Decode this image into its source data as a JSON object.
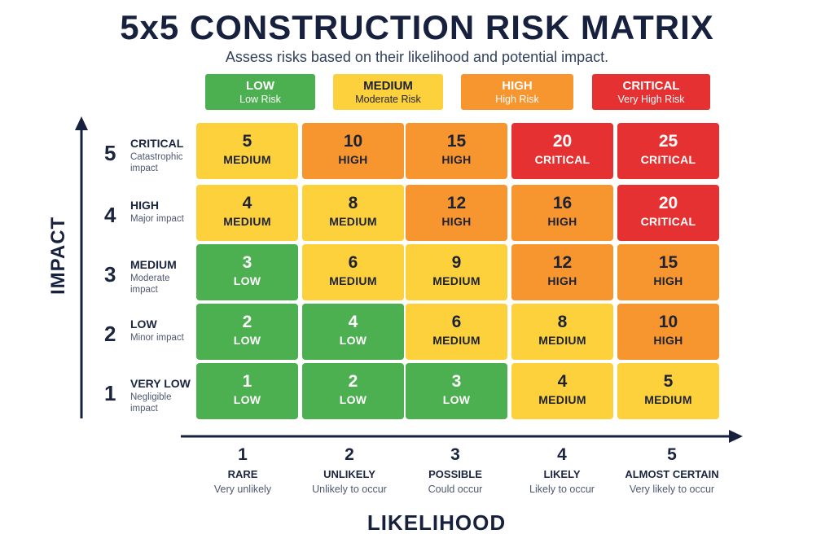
{
  "title": "5x5 CONSTRUCTION RISK MATRIX",
  "subtitle": "Assess risks based on their likelihood and potential impact.",
  "colors": {
    "low": "#4caf50",
    "medium": "#fdd13c",
    "high": "#f7952f",
    "critical": "#e53131"
  },
  "legend": [
    {
      "key": "low",
      "label": "LOW",
      "desc": "Low Risk"
    },
    {
      "key": "medium",
      "label": "MEDIUM",
      "desc": "Moderate Risk"
    },
    {
      "key": "high",
      "label": "HIGH",
      "desc": "High Risk"
    },
    {
      "key": "critical",
      "label": "CRITICAL",
      "desc": "Very High Risk"
    }
  ],
  "y_axis_title": "IMPACT",
  "x_axis_title": "LIKELIHOOD",
  "impact_levels": [
    {
      "num": "5",
      "name": "CRITICAL",
      "desc": "Catastrophic impact"
    },
    {
      "num": "4",
      "name": "HIGH",
      "desc": "Major impact"
    },
    {
      "num": "3",
      "name": "MEDIUM",
      "desc": "Moderate impact"
    },
    {
      "num": "2",
      "name": "LOW",
      "desc": "Minor impact"
    },
    {
      "num": "1",
      "name": "VERY LOW",
      "desc": "Negligible impact"
    }
  ],
  "likelihood_levels": [
    {
      "num": "1",
      "name": "RARE",
      "desc": "Very unlikely"
    },
    {
      "num": "2",
      "name": "UNLIKELY",
      "desc": "Unlikely to occur"
    },
    {
      "num": "3",
      "name": "POSSIBLE",
      "desc": "Could occur"
    },
    {
      "num": "4",
      "name": "LIKELY",
      "desc": "Likely to occur"
    },
    {
      "num": "5",
      "name": "ALMOST CERTAIN",
      "desc": "Very likely to occur"
    }
  ],
  "matrix": [
    [
      {
        "score": "5",
        "level": "MEDIUM"
      },
      {
        "score": "10",
        "level": "HIGH"
      },
      {
        "score": "15",
        "level": "HIGH"
      },
      {
        "score": "20",
        "level": "CRITICAL"
      },
      {
        "score": "25",
        "level": "CRITICAL"
      }
    ],
    [
      {
        "score": "4",
        "level": "MEDIUM"
      },
      {
        "score": "8",
        "level": "MEDIUM"
      },
      {
        "score": "12",
        "level": "HIGH"
      },
      {
        "score": "16",
        "level": "HIGH"
      },
      {
        "score": "20",
        "level": "CRITICAL"
      }
    ],
    [
      {
        "score": "3",
        "level": "LOW"
      },
      {
        "score": "6",
        "level": "MEDIUM"
      },
      {
        "score": "9",
        "level": "MEDIUM"
      },
      {
        "score": "12",
        "level": "HIGH"
      },
      {
        "score": "15",
        "level": "HIGH"
      }
    ],
    [
      {
        "score": "2",
        "level": "LOW"
      },
      {
        "score": "4",
        "level": "LOW"
      },
      {
        "score": "6",
        "level": "MEDIUM"
      },
      {
        "score": "8",
        "level": "MEDIUM"
      },
      {
        "score": "10",
        "level": "HIGH"
      }
    ],
    [
      {
        "score": "1",
        "level": "LOW"
      },
      {
        "score": "2",
        "level": "LOW"
      },
      {
        "score": "3",
        "level": "LOW"
      },
      {
        "score": "4",
        "level": "MEDIUM"
      },
      {
        "score": "5",
        "level": "MEDIUM"
      }
    ]
  ]
}
